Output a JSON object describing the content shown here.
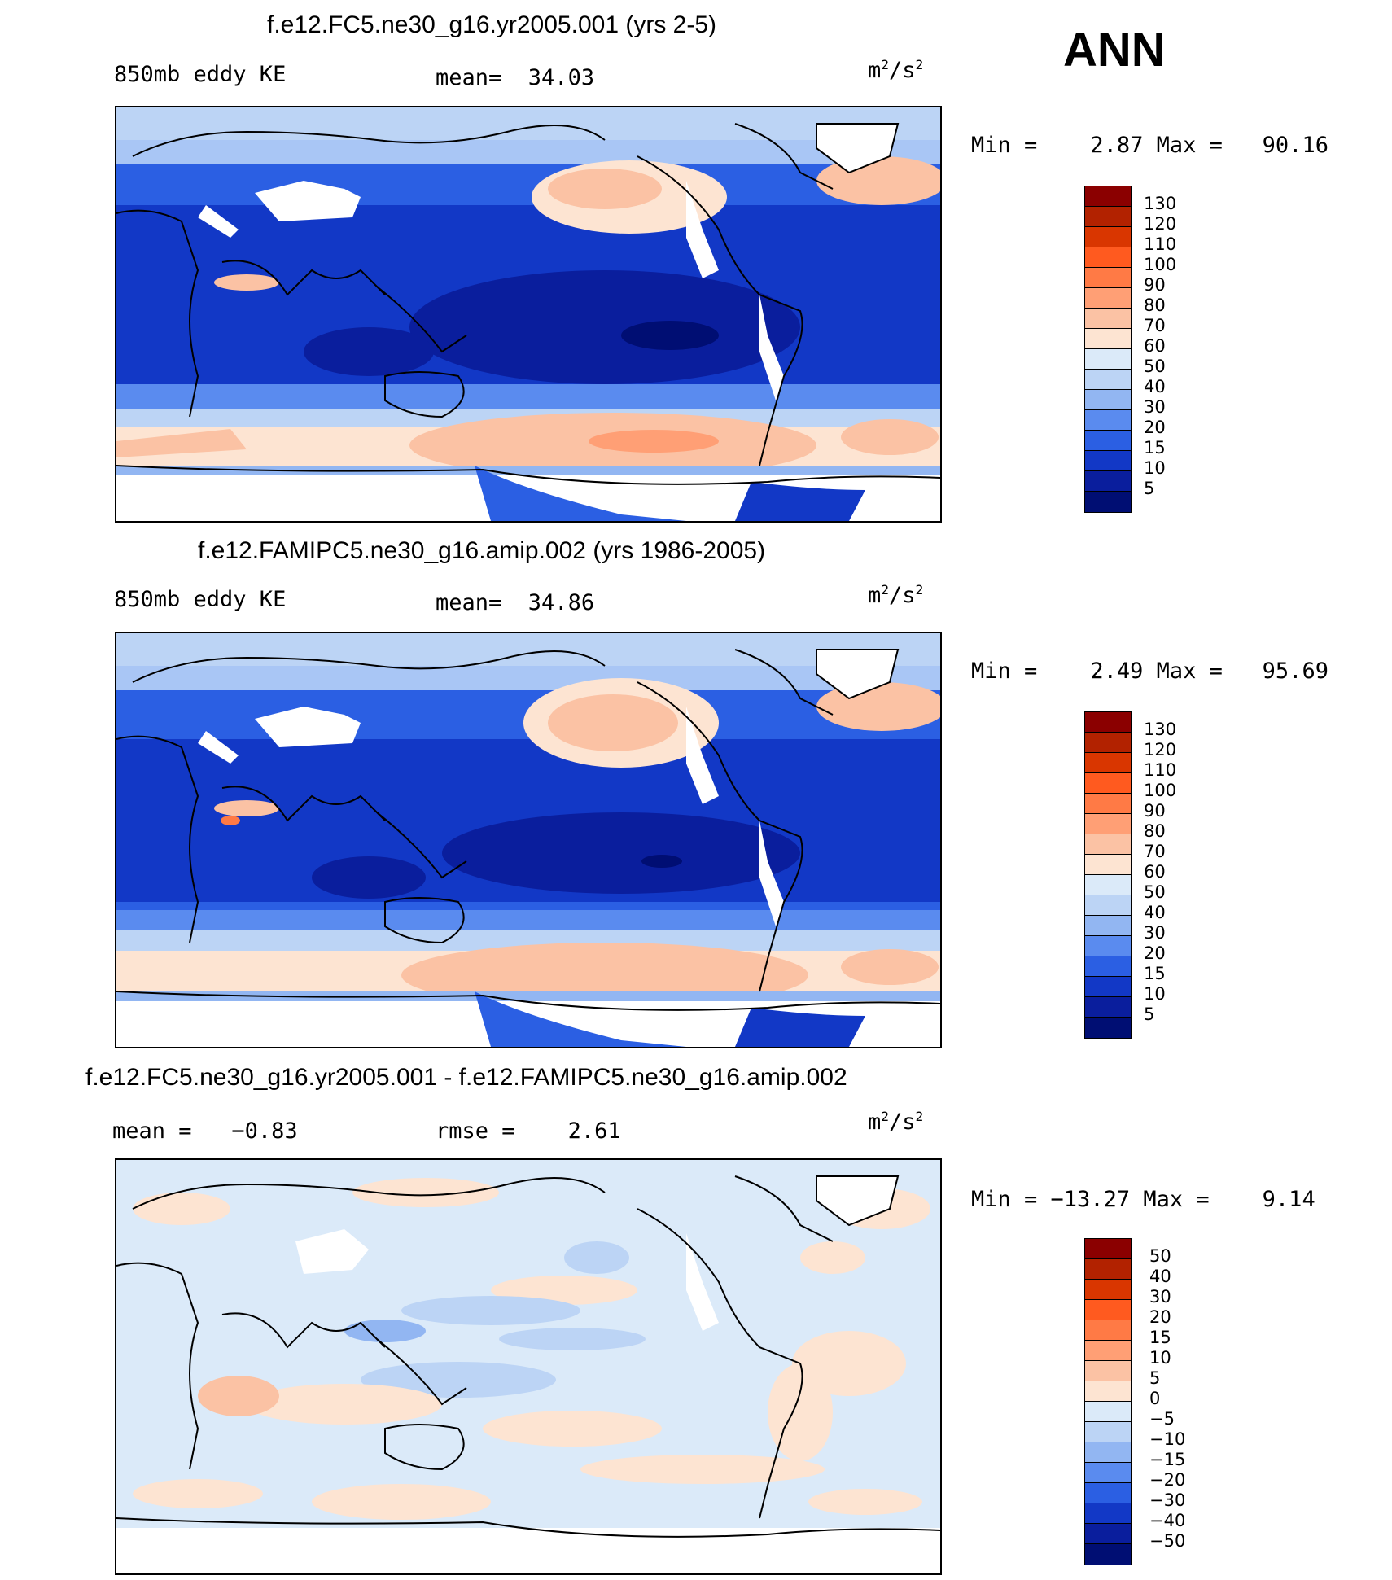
{
  "season": "ANN",
  "panels": [
    {
      "id": "top",
      "title": "f.e12.FC5.ne30_g16.yr2005.001 (yrs 2-5)",
      "variable": "850mb eddy KE",
      "stat_label": "mean=",
      "stat_value": "34.03",
      "units_base": "m",
      "units_exp": "2",
      "units_den": "/s",
      "units_den_exp": "2",
      "min_label": "Min =",
      "min_value": "2.87",
      "max_label": "Max =",
      "max_value": "90.16",
      "colorbar_labels": [
        "130",
        "120",
        "110",
        "100",
        "90",
        "80",
        "70",
        "60",
        "50",
        "40",
        "30",
        "20",
        "15",
        "10",
        "5"
      ]
    },
    {
      "id": "middle",
      "title": "f.e12.FAMIPC5.ne30_g16.amip.002 (yrs 1986-2005)",
      "variable": "850mb eddy KE",
      "stat_label": "mean=",
      "stat_value": "34.86",
      "units_base": "m",
      "units_exp": "2",
      "units_den": "/s",
      "units_den_exp": "2",
      "min_label": "Min =",
      "min_value": "2.49",
      "max_label": "Max =",
      "max_value": "95.69",
      "colorbar_labels": [
        "130",
        "120",
        "110",
        "100",
        "90",
        "80",
        "70",
        "60",
        "50",
        "40",
        "30",
        "20",
        "15",
        "10",
        "5"
      ]
    },
    {
      "id": "bottom",
      "title": "f.e12.FC5.ne30_g16.yr2005.001 - f.e12.FAMIPC5.ne30_g16.amip.002",
      "stat1_label": "mean =",
      "stat1_value": "−0.83",
      "stat2_label": "rmse =",
      "stat2_value": "2.61",
      "units_base": "m",
      "units_exp": "2",
      "units_den": "/s",
      "units_den_exp": "2",
      "min_label": "Min =",
      "min_value": "−13.27",
      "max_label": "Max =",
      "max_value": "9.14",
      "colorbar_labels": [
        "50",
        "40",
        "30",
        "20",
        "15",
        "10",
        "5",
        "0",
        "−5",
        "−10",
        "−15",
        "−20",
        "−30",
        "−40",
        "−50"
      ]
    }
  ],
  "colors": {
    "abs_scale": [
      "#8b0000",
      "#b22200",
      "#d93600",
      "#ff5a1f",
      "#ff7a45",
      "#ff9f75",
      "#fbc2a4",
      "#fde4d2",
      "#dbeaf9",
      "#bcd4f5",
      "#92b6f2",
      "#5a8bef",
      "#2b5fe3",
      "#1238c6",
      "#0a1e9d",
      "#000e73"
    ],
    "diff_scale": [
      "#8b0000",
      "#b22200",
      "#d93600",
      "#ff5a1f",
      "#ff7a45",
      "#ff9f75",
      "#fbc2a4",
      "#fde4d2",
      "#dbeaf9",
      "#bcd4f5",
      "#92b6f2",
      "#5a8bef",
      "#2b5fe3",
      "#1238c6",
      "#0a1e9d",
      "#000e73"
    ]
  }
}
